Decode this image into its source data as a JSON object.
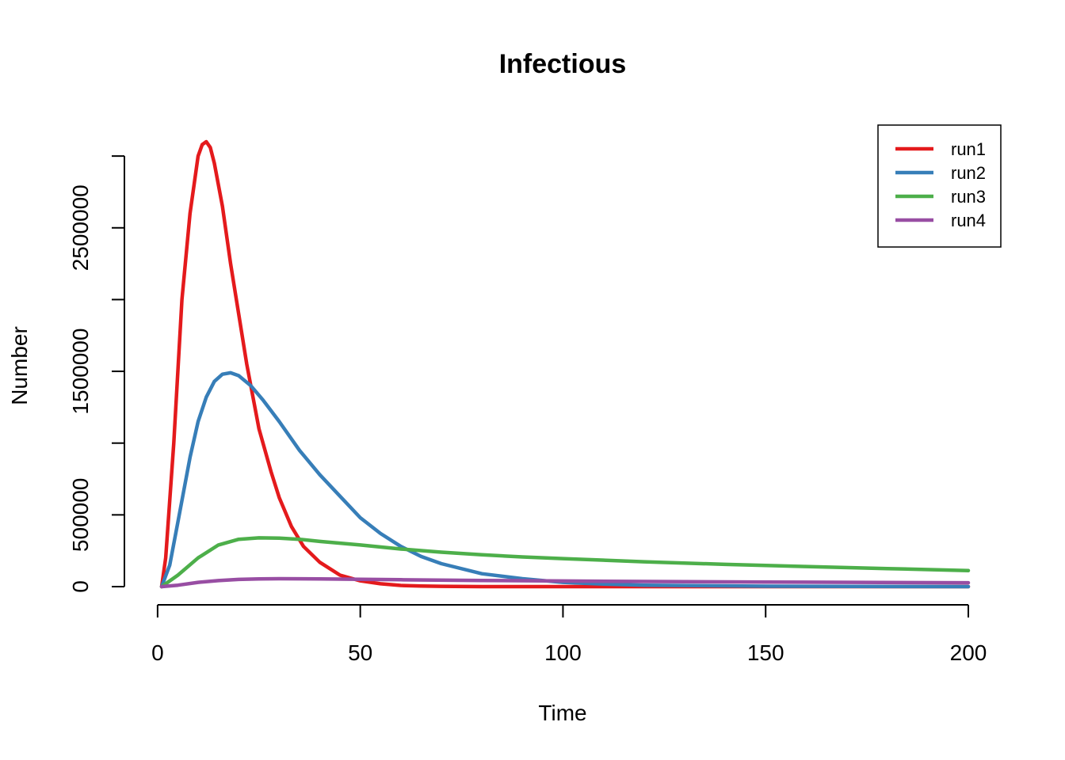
{
  "chart_data": {
    "type": "line",
    "title": "Infectious",
    "xlabel": "Time",
    "ylabel": "Number",
    "xlim": [
      1,
      200
    ],
    "ylim": [
      0,
      3100000
    ],
    "xticks": [
      0,
      50,
      100,
      150,
      200
    ],
    "yticks": [
      0,
      500000,
      1000000,
      1500000,
      2000000,
      2500000,
      3000000
    ],
    "ytick_labels": [
      "0",
      "500000",
      "",
      "1500000",
      "",
      "2500000",
      ""
    ],
    "grid": false,
    "legend_position": "top-right",
    "series": [
      {
        "name": "run1",
        "color": "#E41A1C",
        "x": [
          1,
          2,
          4,
          6,
          8,
          9,
          10,
          11,
          12,
          13,
          14,
          16,
          18,
          20,
          22,
          25,
          28,
          30,
          33,
          36,
          40,
          45,
          50,
          55,
          60,
          65,
          70,
          80,
          100,
          150,
          200
        ],
        "y": [
          0,
          200000,
          1000000,
          2000000,
          2600000,
          2800000,
          3000000,
          3080000,
          3100000,
          3060000,
          2950000,
          2650000,
          2250000,
          1900000,
          1550000,
          1100000,
          800000,
          620000,
          420000,
          280000,
          170000,
          80000,
          40000,
          20000,
          8000,
          4000,
          2000,
          0,
          0,
          0,
          0
        ]
      },
      {
        "name": "run2",
        "color": "#377EB8",
        "x": [
          1,
          3,
          5,
          8,
          10,
          12,
          14,
          16,
          18,
          20,
          23,
          26,
          30,
          35,
          40,
          45,
          50,
          55,
          60,
          65,
          70,
          80,
          90,
          100,
          110,
          120,
          150,
          200
        ],
        "y": [
          0,
          150000,
          450000,
          900000,
          1150000,
          1320000,
          1430000,
          1480000,
          1490000,
          1470000,
          1400000,
          1300000,
          1150000,
          950000,
          780000,
          630000,
          480000,
          370000,
          280000,
          210000,
          160000,
          90000,
          55000,
          30000,
          18000,
          10000,
          3000,
          0
        ]
      },
      {
        "name": "run3",
        "color": "#4DAF4A",
        "x": [
          1,
          5,
          10,
          15,
          20,
          25,
          30,
          35,
          40,
          50,
          60,
          70,
          80,
          90,
          100,
          120,
          140,
          160,
          180,
          200
        ],
        "y": [
          0,
          80000,
          200000,
          290000,
          330000,
          340000,
          338000,
          330000,
          315000,
          290000,
          262000,
          240000,
          222000,
          207000,
          195000,
          173000,
          155000,
          140000,
          126000,
          112000
        ]
      },
      {
        "name": "run4",
        "color": "#984EA3",
        "x": [
          1,
          5,
          10,
          15,
          20,
          25,
          30,
          40,
          50,
          60,
          80,
          100,
          120,
          150,
          200
        ],
        "y": [
          0,
          10000,
          30000,
          42000,
          50000,
          54000,
          55000,
          54000,
          51000,
          48000,
          43000,
          39000,
          36000,
          32000,
          27000
        ]
      }
    ]
  }
}
